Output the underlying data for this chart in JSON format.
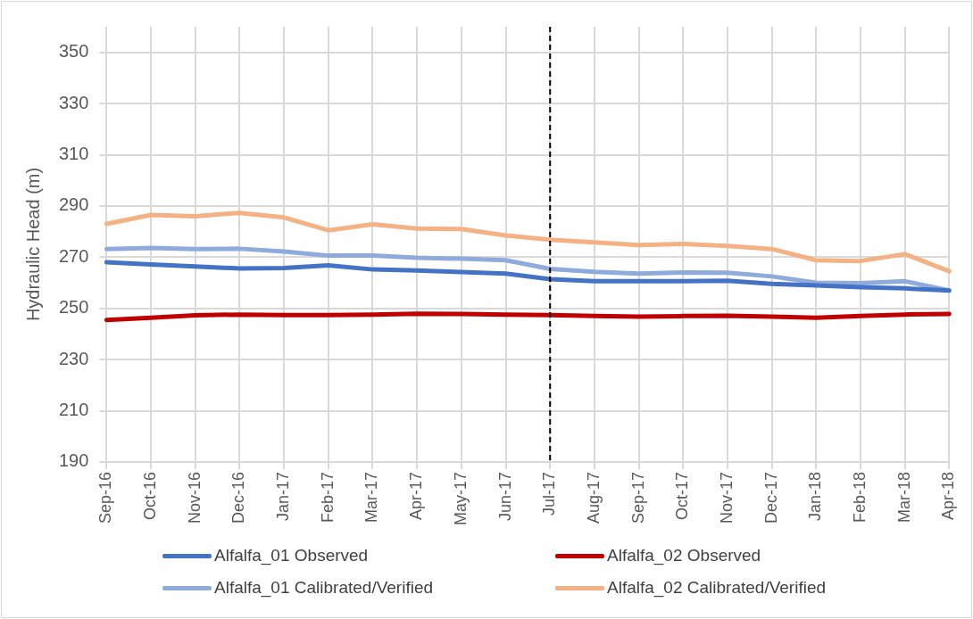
{
  "chart_data": {
    "type": "line",
    "ylabel": "Hydraulic Head (m)",
    "categories": [
      "Sep-16",
      "Oct-16",
      "Nov-16",
      "Dec-16",
      "Jan-17",
      "Feb-17",
      "Mar-17",
      "Apr-17",
      "May-17",
      "Jun-17",
      "Jul-17",
      "Aug-17",
      "Sep-17",
      "Oct-17",
      "Nov-17",
      "Dec-17",
      "Jan-18",
      "Feb-18",
      "Mar-18",
      "Apr-18"
    ],
    "series": [
      {
        "name": "Alfalfa_01 Observed",
        "color": "#4472c4",
        "values": [
          268,
          267.2,
          266.4,
          265.6,
          265.8,
          266.8,
          265.2,
          264.8,
          264.2,
          263.6,
          261.4,
          260.6,
          260.6,
          260.6,
          260.8,
          259.6,
          259,
          258.3,
          257.8,
          257
        ]
      },
      {
        "name": "Alfalfa_02 Observed",
        "color": "#c00000",
        "values": [
          245.5,
          246.3,
          247.3,
          247.6,
          247.4,
          247.4,
          247.6,
          247.9,
          247.8,
          247.6,
          247.4,
          247,
          246.8,
          247,
          247.1,
          246.8,
          246.3,
          247,
          247.6,
          247.8
        ]
      },
      {
        "name": "Alfalfa_01 Calibrated/Verified",
        "color": "#8faadc",
        "values": [
          273.2,
          273.6,
          273.2,
          273.3,
          272.2,
          270.6,
          270.6,
          269.8,
          269.4,
          268.8,
          265.4,
          264.3,
          263.6,
          264,
          263.9,
          262.5,
          260,
          259.8,
          260.6,
          257
        ]
      },
      {
        "name": "Alfalfa_02 Calibrated/Verified",
        "color": "#f4b183",
        "values": [
          283,
          286.5,
          286,
          287.3,
          285.5,
          280.5,
          282.8,
          281.2,
          281,
          278.5,
          276.8,
          275.8,
          274.7,
          275.2,
          274.4,
          273.2,
          268.8,
          268.5,
          271.2,
          264.5
        ]
      }
    ],
    "ylim": [
      190,
      360
    ],
    "yticks": [
      190,
      210,
      230,
      250,
      270,
      290,
      310,
      330,
      350
    ],
    "ref_lines": [
      {
        "axis": "x",
        "value": "Jul-17",
        "color": "#000000",
        "line_style": "dashed"
      }
    ],
    "grid": true,
    "legend": "bottom",
    "marker": "none",
    "line_style": "solid"
  }
}
